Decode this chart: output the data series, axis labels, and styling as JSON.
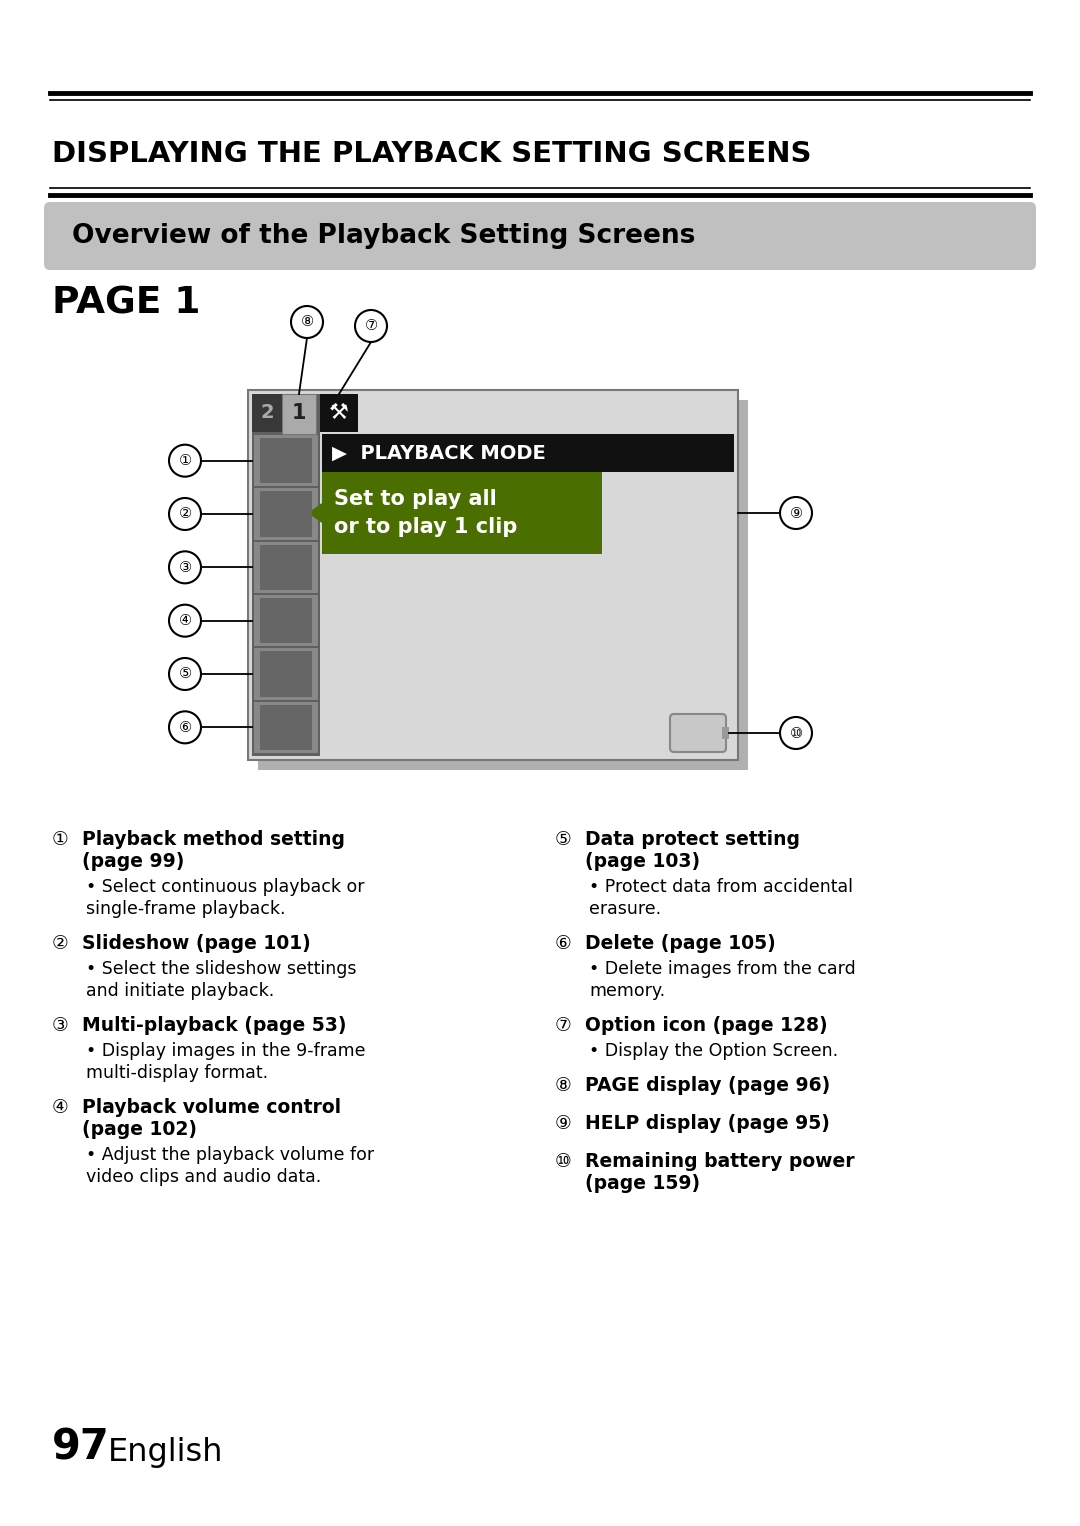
{
  "title_main": "DISPLAYING THE PLAYBACK SETTING SCREENS",
  "title_sub": "Overview of the Playback Setting Screens",
  "page_label": "PAGE 1",
  "page_number": "97",
  "page_suffix": "English",
  "bg": "#ffffff",
  "left_items": [
    {
      "num": "①",
      "bold_lines": [
        "Playback method setting",
        "(page 99)"
      ],
      "body": "• Select continuous playback or\n  single-frame playback."
    },
    {
      "num": "②",
      "bold_lines": [
        "Slideshow (page 101)"
      ],
      "body": "• Select the slideshow settings\n  and initiate playback."
    },
    {
      "num": "③",
      "bold_lines": [
        "Multi-playback (page 53)"
      ],
      "body": "• Display images in the 9-frame\n  multi-display format."
    },
    {
      "num": "④",
      "bold_lines": [
        "Playback volume control",
        "(page 102)"
      ],
      "body": "• Adjust the playback volume for\n  video clips and audio data."
    }
  ],
  "right_items": [
    {
      "num": "⑤",
      "bold_lines": [
        "Data protect setting",
        "(page 103)"
      ],
      "body": "• Protect data from accidental\n  erasure."
    },
    {
      "num": "⑥",
      "bold_lines": [
        "Delete (page 105)"
      ],
      "body": "• Delete images from the card\n  memory."
    },
    {
      "num": "⑦",
      "bold_lines": [
        "Option icon (page 128)"
      ],
      "body": "• Display the Option Screen."
    },
    {
      "num": "⑧",
      "bold_lines": [
        "PAGE display (page 96)"
      ],
      "body": ""
    },
    {
      "num": "⑨",
      "bold_lines": [
        "HELP display (page 95)"
      ],
      "body": ""
    },
    {
      "num": "⑩",
      "bold_lines": [
        "Remaining battery power",
        "(page 159)"
      ],
      "body": ""
    }
  ]
}
